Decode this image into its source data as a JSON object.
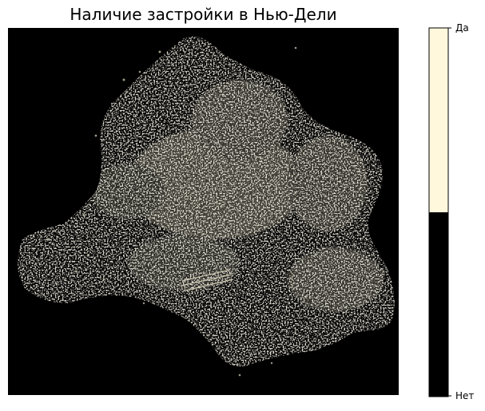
{
  "title": "Наличие застройки в Нью-Дели",
  "colorbar": {
    "labels": [
      {
        "key": "yes",
        "text": "Да",
        "color": "#fff8dc"
      },
      {
        "key": "no",
        "text": "Нет",
        "color": "#000000"
      }
    ]
  },
  "map": {
    "background_color": "#000000",
    "builtup_color": "#fff8dc",
    "variable": "built-up presence",
    "classes": [
      "Нет",
      "Да"
    ]
  }
}
